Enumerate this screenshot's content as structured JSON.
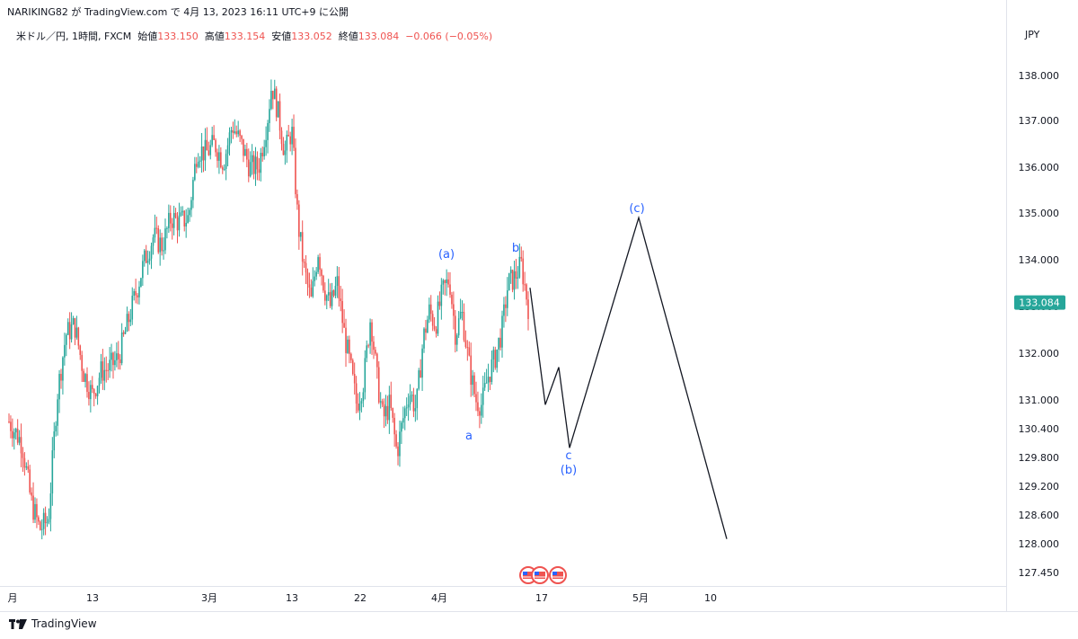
{
  "header": {
    "text": "NARIKING82 が TradingView.com で 4月 13, 2023 16:11 UTC+9 に公開"
  },
  "legend": {
    "symbol": "米ドル／円, 1時間, FXCM",
    "open_label": "始値",
    "open": "133.150",
    "high_label": "高値",
    "high": "133.154",
    "low_label": "安値",
    "low": "133.052",
    "close_label": "終値",
    "close": "133.084",
    "change": "−0.066 (−0.05%)"
  },
  "currency": "JPY",
  "footer": {
    "brand": "TradingView"
  },
  "colors": {
    "up": "#26a69a",
    "down": "#ef5350",
    "wave_label": "#2962ff",
    "projection": "#131722",
    "price_tag": "#26a69a"
  },
  "chart_data": {
    "type": "candlestick",
    "price_axis": {
      "ticks": [
        138.0,
        137.0,
        136.0,
        135.0,
        134.0,
        133.0,
        132.0,
        131.0,
        130.4,
        129.8,
        129.2,
        128.6,
        128.0,
        127.45
      ],
      "tick_labels": [
        "138.000",
        "137.000",
        "136.000",
        "135.000",
        "134.000",
        "133.000",
        "132.000",
        "131.000",
        "130.400",
        "129.800",
        "129.200",
        "128.600",
        "128.000",
        "127.450"
      ],
      "scale": "piecewise"
    },
    "time_axis": {
      "labels": [
        "月",
        "13",
        "3月",
        "13",
        "22",
        "4月",
        "17",
        "5月",
        "10"
      ]
    },
    "last_price": "133.084",
    "price_path": [
      {
        "t": 0,
        "p": 130.55
      },
      {
        "t": 1.5,
        "p": 130.1
      },
      {
        "t": 2.5,
        "p": 128.9
      },
      {
        "t": 3.5,
        "p": 128.3
      },
      {
        "t": 4.5,
        "p": 128.5
      },
      {
        "t": 5.5,
        "p": 131.1
      },
      {
        "t": 6.5,
        "p": 132.4
      },
      {
        "t": 7.5,
        "p": 132.6
      },
      {
        "t": 8.5,
        "p": 131.6
      },
      {
        "t": 9.5,
        "p": 131.1
      },
      {
        "t": 10.5,
        "p": 131.6
      },
      {
        "t": 11.5,
        "p": 131.7
      },
      {
        "t": 12.5,
        "p": 131.9
      },
      {
        "t": 13.5,
        "p": 132.6
      },
      {
        "t": 14.5,
        "p": 133.3
      },
      {
        "t": 15.5,
        "p": 134.0
      },
      {
        "t": 16.5,
        "p": 134.5
      },
      {
        "t": 17.5,
        "p": 134.3
      },
      {
        "t": 18.5,
        "p": 134.9
      },
      {
        "t": 19.5,
        "p": 134.8
      },
      {
        "t": 20.5,
        "p": 134.9
      },
      {
        "t": 21.5,
        "p": 136.4
      },
      {
        "t": 22.5,
        "p": 136.3
      },
      {
        "t": 23.5,
        "p": 136.5
      },
      {
        "t": 24.5,
        "p": 136.1
      },
      {
        "t": 25.5,
        "p": 136.9
      },
      {
        "t": 26.5,
        "p": 136.5
      },
      {
        "t": 27.5,
        "p": 136.0
      },
      {
        "t": 28.5,
        "p": 136.0
      },
      {
        "t": 29.5,
        "p": 137.0
      },
      {
        "t": 30.0,
        "p": 137.8
      },
      {
        "t": 30.7,
        "p": 137.2
      },
      {
        "t": 31.5,
        "p": 136.3
      },
      {
        "t": 32.3,
        "p": 136.8
      },
      {
        "t": 33.0,
        "p": 134.8
      },
      {
        "t": 33.7,
        "p": 133.8
      },
      {
        "t": 34.5,
        "p": 133.1
      },
      {
        "t": 35.3,
        "p": 134.2
      },
      {
        "t": 36.0,
        "p": 133.4
      },
      {
        "t": 36.7,
        "p": 133.0
      },
      {
        "t": 37.5,
        "p": 133.5
      },
      {
        "t": 38.3,
        "p": 132.4
      },
      {
        "t": 39.0,
        "p": 131.7
      },
      {
        "t": 39.7,
        "p": 130.9
      },
      {
        "t": 40.5,
        "p": 131.4
      },
      {
        "t": 41.3,
        "p": 132.8
      },
      {
        "t": 42.0,
        "p": 131.5
      },
      {
        "t": 42.7,
        "p": 130.6
      },
      {
        "t": 43.5,
        "p": 130.9
      },
      {
        "t": 44.3,
        "p": 129.9
      },
      {
        "t": 45.0,
        "p": 130.6
      },
      {
        "t": 45.7,
        "p": 131.2
      },
      {
        "t": 46.5,
        "p": 130.8
      },
      {
        "t": 47.3,
        "p": 132.3
      },
      {
        "t": 48.0,
        "p": 132.9
      },
      {
        "t": 48.7,
        "p": 132.6
      },
      {
        "t": 49.5,
        "p": 133.3
      },
      {
        "t": 50.3,
        "p": 133.6
      },
      {
        "t": 51.0,
        "p": 132.4
      },
      {
        "t": 51.7,
        "p": 132.9
      },
      {
        "t": 52.5,
        "p": 131.8
      },
      {
        "t": 53.3,
        "p": 131.0
      },
      {
        "t": 54.0,
        "p": 130.9
      },
      {
        "t": 54.7,
        "p": 131.5
      },
      {
        "t": 55.5,
        "p": 131.9
      },
      {
        "t": 56.3,
        "p": 132.5
      },
      {
        "t": 57.0,
        "p": 133.5
      },
      {
        "t": 57.7,
        "p": 133.6
      },
      {
        "t": 58.5,
        "p": 133.9
      },
      {
        "t": 59.3,
        "p": 133.0
      }
    ],
    "projection": [
      {
        "label": "",
        "price": 133.4
      },
      {
        "label": "",
        "price": 130.9
      },
      {
        "label": "",
        "price": 131.7
      },
      {
        "label": "c",
        "price": 130.0
      },
      {
        "label": "(c)",
        "price": 134.9
      },
      {
        "label": "",
        "price": 128.1
      }
    ],
    "wave_labels": [
      "(a)",
      "a",
      "b",
      "c",
      "(b)",
      "(c)"
    ],
    "event_markers": 3
  }
}
